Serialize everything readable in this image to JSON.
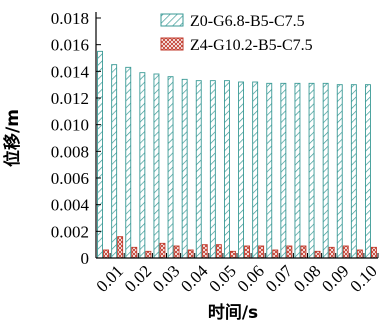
{
  "chart_data": {
    "type": "bar",
    "xlabel": "时间/s",
    "ylabel": "位移/m",
    "ylim": [
      0,
      0.018
    ],
    "yticks": [
      "0",
      "0.002",
      "0.004",
      "0.006",
      "0.008",
      "0.010",
      "0.012",
      "0.014",
      "0.016",
      "0.018"
    ],
    "xtick_labels": [
      "0.01",
      "0.02",
      "0.03",
      "0.04",
      "0.05",
      "0.06",
      "0.07",
      "0.08",
      "0.09",
      "0.10"
    ],
    "x": [
      0.005,
      0.01,
      0.015,
      0.02,
      0.025,
      0.03,
      0.035,
      0.04,
      0.045,
      0.05,
      0.055,
      0.06,
      0.065,
      0.07,
      0.075,
      0.08,
      0.085,
      0.09,
      0.095,
      0.1
    ],
    "legend_position": "top-right",
    "grid": false,
    "series": [
      {
        "name": "Z0-G6.8-B5-C7.5",
        "color": "#3a9a96",
        "pattern": "diagonal-hatch",
        "values": [
          0.0155,
          0.0145,
          0.0143,
          0.0139,
          0.0138,
          0.0136,
          0.0134,
          0.0133,
          0.0133,
          0.0133,
          0.0132,
          0.0132,
          0.0131,
          0.0131,
          0.0131,
          0.0131,
          0.0131,
          0.013,
          0.013,
          0.013
        ]
      },
      {
        "name": "Z4-G10.2-B5-C7.5",
        "color": "#c0392b",
        "pattern": "crosshatch",
        "values": [
          0.0006,
          0.0016,
          0.0008,
          0.0005,
          0.0011,
          0.0009,
          0.0006,
          0.001,
          0.001,
          0.0005,
          0.0009,
          0.0009,
          0.0006,
          0.0009,
          0.0009,
          0.0005,
          0.0008,
          0.0009,
          0.0006,
          0.0008
        ]
      }
    ]
  }
}
